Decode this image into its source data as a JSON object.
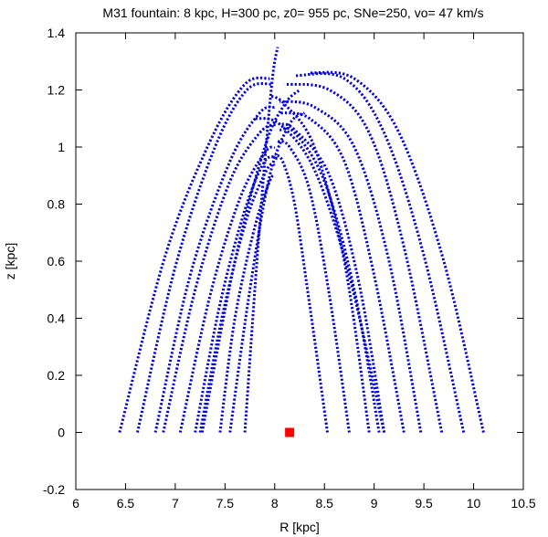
{
  "chart_data": {
    "type": "line",
    "title": "M31 fountain: 8 kpc, H=300 pc, z0= 955 pc, SNe=250,  vo= 47 km/s",
    "xlabel": "R [kpc]",
    "ylabel": "z [kpc]",
    "xlim": [
      6,
      10.5
    ],
    "ylim": [
      -0.2,
      1.4
    ],
    "xticks": [
      6,
      6.5,
      7,
      7.5,
      8,
      8.5,
      9,
      9.5,
      10,
      10.5
    ],
    "xtick_labels": [
      "6",
      "6.5",
      "7",
      "7.5",
      "8",
      "8.5",
      "9",
      "9.5",
      "10",
      "10.5"
    ],
    "yticks": [
      -0.2,
      0,
      0.2,
      0.4,
      0.6,
      0.8,
      1,
      1.2,
      1.4
    ],
    "ytick_labels": [
      "-0.2",
      "0",
      "0.2",
      "0.4",
      "0.6",
      "0.8",
      "1",
      "1.2",
      "1.4"
    ],
    "grid": false,
    "series_color": "#0000dd",
    "marker_color": "#ff0000",
    "series": [
      {
        "x": [
          6.44,
          6.9,
          7.35,
          7.7,
          7.95
        ],
        "y": [
          0,
          0.62,
          1.02,
          1.22,
          1.24
        ]
      },
      {
        "x": [
          6.62,
          7.0,
          7.4,
          7.72,
          7.98
        ],
        "y": [
          0,
          0.58,
          1.0,
          1.2,
          1.22
        ]
      },
      {
        "x": [
          6.8,
          7.15,
          7.55,
          7.85,
          8.0
        ],
        "y": [
          0,
          0.55,
          0.95,
          1.12,
          1.14
        ]
      },
      {
        "x": [
          6.88,
          7.2,
          7.55,
          7.85,
          8.02
        ],
        "y": [
          0,
          0.5,
          0.88,
          1.05,
          1.08
        ]
      },
      {
        "x": [
          7.05,
          7.35,
          7.65,
          7.9,
          8.0
        ],
        "y": [
          0,
          0.48,
          0.82,
          0.98,
          1.0
        ]
      },
      {
        "x": [
          7.2,
          7.45,
          7.7,
          7.9,
          8.03
        ],
        "y": [
          0,
          0.45,
          0.78,
          0.95,
          0.96
        ]
      },
      {
        "x": [
          7.25,
          7.48,
          7.72,
          7.92,
          8.0
        ],
        "y": [
          0,
          0.42,
          0.75,
          0.92,
          0.94
        ]
      },
      {
        "x": [
          7.45,
          7.6,
          7.8,
          7.95,
          8.0
        ],
        "y": [
          0,
          0.4,
          0.72,
          0.88,
          0.9
        ]
      },
      {
        "x": [
          7.7,
          7.8,
          7.9,
          7.98,
          8.03
        ],
        "y": [
          0,
          0.5,
          0.95,
          1.25,
          1.35
        ]
      },
      {
        "x": [
          8.53,
          8.35,
          8.2,
          8.08,
          8.0
        ],
        "y": [
          0,
          0.45,
          0.8,
          0.95,
          0.97
        ]
      },
      {
        "x": [
          8.75,
          8.55,
          8.35,
          8.15,
          8.03
        ],
        "y": [
          0,
          0.48,
          0.85,
          1.0,
          1.02
        ]
      },
      {
        "x": [
          9.05,
          8.8,
          8.5,
          8.2,
          8.05
        ],
        "y": [
          0,
          0.5,
          0.88,
          1.05,
          1.06
        ]
      },
      {
        "x": [
          9.1,
          8.85,
          8.55,
          8.2,
          8.05
        ],
        "y": [
          0,
          0.52,
          0.9,
          1.06,
          1.08
        ]
      },
      {
        "x": [
          9.3,
          9.0,
          8.7,
          8.35,
          8.05
        ],
        "y": [
          0,
          0.55,
          0.95,
          1.1,
          1.12
        ]
      },
      {
        "x": [
          9.47,
          9.15,
          8.8,
          8.4,
          8.05
        ],
        "y": [
          0,
          0.6,
          1.0,
          1.14,
          1.16
        ]
      },
      {
        "x": [
          9.68,
          9.3,
          8.95,
          8.55,
          8.1
        ],
        "y": [
          0,
          0.65,
          1.05,
          1.2,
          1.22
        ]
      },
      {
        "x": [
          9.9,
          9.5,
          9.1,
          8.7,
          8.2
        ],
        "y": [
          0,
          0.62,
          1.05,
          1.24,
          1.25
        ]
      },
      {
        "x": [
          10.1,
          9.7,
          9.25,
          8.8,
          8.35
        ],
        "y": [
          0,
          0.6,
          1.05,
          1.24,
          1.26
        ]
      },
      {
        "x": [
          7.27,
          7.6,
          7.9,
          8.1,
          8.25
        ],
        "y": [
          0,
          0.6,
          1.0,
          1.15,
          1.2
        ]
      },
      {
        "x": [
          7.55,
          7.75,
          7.95,
          8.15,
          8.3
        ],
        "y": [
          0,
          0.5,
          0.9,
          1.08,
          1.12
        ]
      },
      {
        "x": [
          8.95,
          8.7,
          8.4,
          8.1,
          7.95
        ],
        "y": [
          0,
          0.6,
          1.0,
          1.15,
          1.18
        ]
      },
      {
        "x": [
          9.1,
          8.75,
          8.4,
          8.05,
          7.8
        ],
        "y": [
          0,
          0.55,
          0.92,
          1.08,
          1.1
        ]
      }
    ],
    "marker": {
      "x": 8.15,
      "y": 0
    }
  }
}
